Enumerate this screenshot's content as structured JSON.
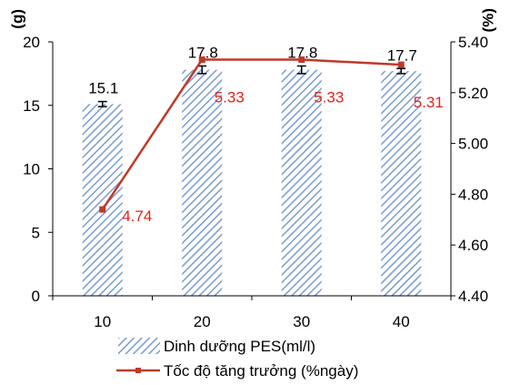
{
  "chart_data": {
    "type": "bar",
    "categories": [
      "10",
      "20",
      "30",
      "40"
    ],
    "y_left": {
      "unit": "(g)",
      "ylim": [
        0,
        20
      ],
      "ticks": [
        0,
        5,
        10,
        15,
        20
      ]
    },
    "y_right": {
      "unit": "(%)",
      "ylim": [
        4.4,
        5.4
      ],
      "ticks": [
        "4.40",
        "4.60",
        "4.80",
        "5.00",
        "5.20",
        "5.40"
      ]
    },
    "series": [
      {
        "name": "Dinh dưỡng PES(ml/l)",
        "type": "bar",
        "axis": "left",
        "values": [
          15.1,
          17.8,
          17.8,
          17.7
        ],
        "labels": [
          "15.1",
          "17.8",
          "17.8",
          "17.7"
        ],
        "error": [
          0.2,
          0.3,
          0.3,
          0.2
        ],
        "color": "#7a9cd0"
      },
      {
        "name": "Tốc độ tăng trưởng (%ngày)",
        "type": "line",
        "axis": "right",
        "values": [
          4.74,
          5.33,
          5.33,
          5.31
        ],
        "labels": [
          "4.74",
          "5.33",
          "5.33",
          "5.31"
        ],
        "color": "#c0392b",
        "label_color": "#e0231b"
      }
    ],
    "grid": false,
    "legend_position": "bottom"
  }
}
